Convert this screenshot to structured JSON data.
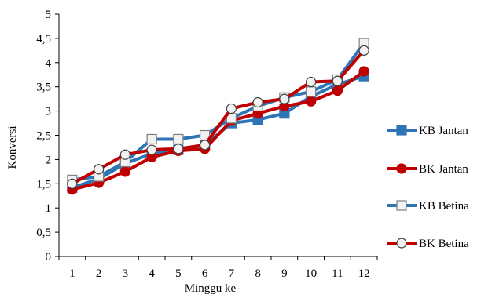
{
  "chart_data": {
    "type": "line",
    "title": "",
    "xlabel": "Minggu ke-",
    "ylabel": "Konversi",
    "x": [
      "1",
      "2",
      "3",
      "4",
      "5",
      "6",
      "7",
      "8",
      "9",
      "10",
      "11",
      "12"
    ],
    "ylim": [
      0,
      5
    ],
    "yticks": [
      "0",
      "0,5",
      "1",
      "1,5",
      "2",
      "2,5",
      "3",
      "3,5",
      "4",
      "4,5",
      "5"
    ],
    "grid": false,
    "legend": "right",
    "series": [
      {
        "name": "KB Jantan",
        "color": "#2E75B6",
        "marker": "square-filled",
        "values": [
          1.42,
          1.6,
          1.92,
          2.12,
          2.2,
          2.3,
          2.75,
          2.82,
          2.95,
          3.3,
          3.55,
          3.72
        ]
      },
      {
        "name": "BK Jantan",
        "color": "#C00000",
        "marker": "circle-filled",
        "values": [
          1.38,
          1.52,
          1.75,
          2.05,
          2.18,
          2.22,
          2.8,
          2.95,
          3.1,
          3.2,
          3.42,
          3.82
        ]
      },
      {
        "name": "KB Betina",
        "color": "#2E75B6",
        "marker": "square-open",
        "values": [
          1.58,
          1.65,
          1.95,
          2.42,
          2.42,
          2.5,
          2.85,
          3.1,
          3.28,
          3.4,
          3.65,
          4.4
        ]
      },
      {
        "name": "BK Betina",
        "color": "#C00000",
        "marker": "circle-open",
        "values": [
          1.5,
          1.8,
          2.1,
          2.2,
          2.22,
          2.3,
          3.05,
          3.18,
          3.25,
          3.6,
          3.62,
          4.25
        ]
      }
    ]
  }
}
